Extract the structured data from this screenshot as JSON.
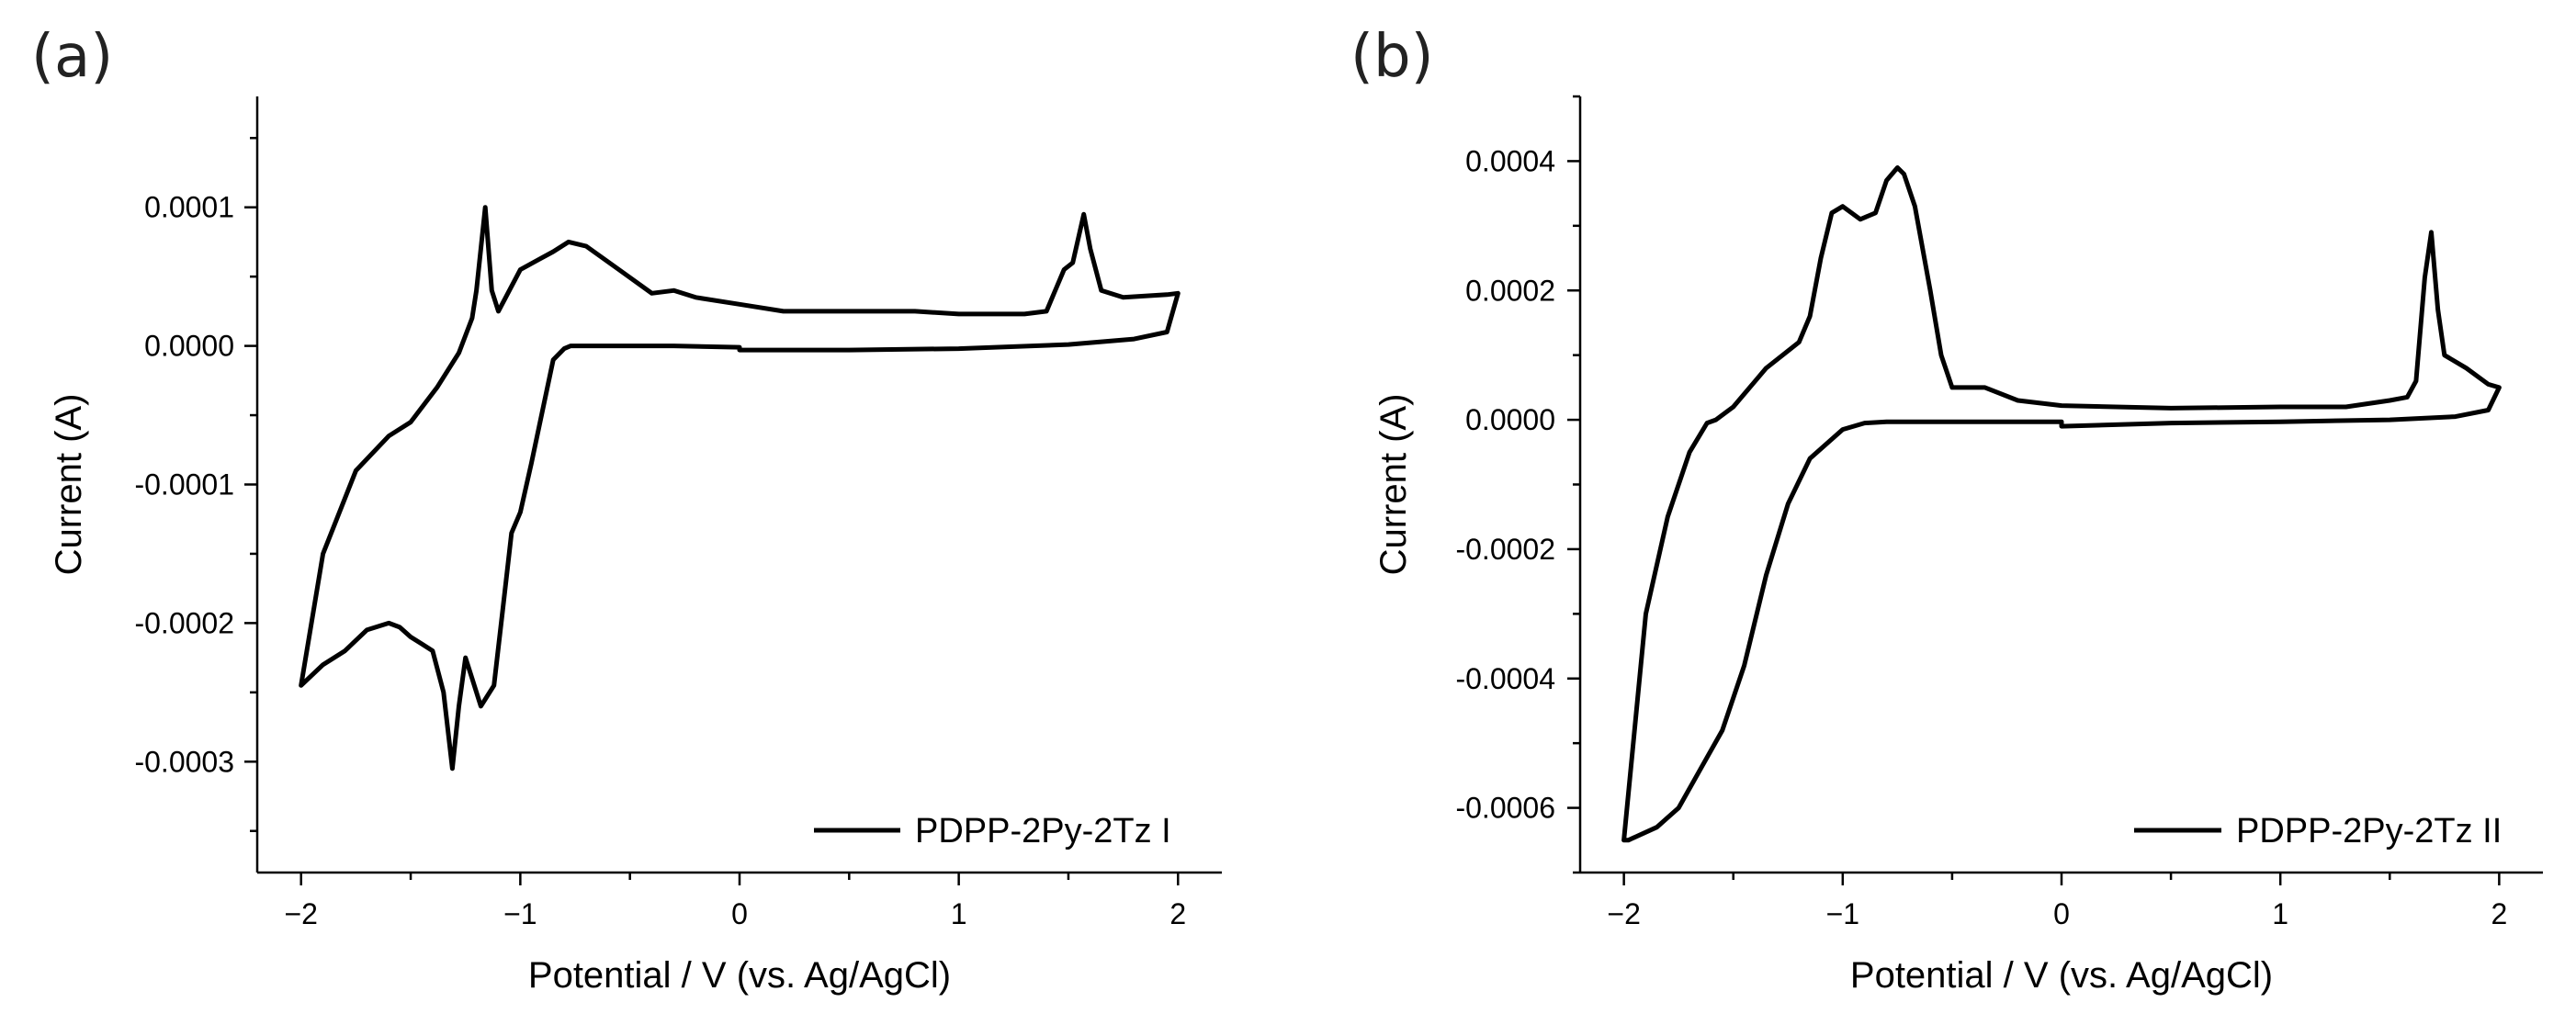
{
  "chart_data": [
    {
      "type": "line",
      "panel": "(a)",
      "xlabel": "Potential / V (vs. Ag/AgCl)",
      "ylabel": "Current (A)",
      "xlim": [
        -2.2,
        2.2
      ],
      "ylim": [
        -0.00038,
        0.00018
      ],
      "xticks": [
        -2,
        -1,
        0,
        1,
        2
      ],
      "xtick_labels": [
        "−2",
        "−1",
        "0",
        "1",
        "2"
      ],
      "yticks": [
        0.0001,
        0.0,
        -0.0001,
        -0.0002,
        -0.0003
      ],
      "ytick_labels": [
        "0.0001",
        "0.0000",
        "-0.0001",
        "-0.0002",
        "-0.0003"
      ],
      "legend": "PDPP-2Py-2Tz I",
      "legend_position": "bottom-right",
      "series": [
        {
          "name": "PDPP-2Py-2Tz I",
          "x": [
            0,
            0.5,
            1.0,
            1.5,
            1.8,
            1.95,
            2.0,
            1.95,
            1.75,
            1.65,
            1.6,
            1.57,
            1.52,
            1.48,
            1.44,
            1.4,
            1.3,
            1.0,
            0.8,
            0.5,
            0.2,
            0.0,
            -0.2,
            -0.3,
            -0.4,
            -0.55,
            -0.7,
            -0.78,
            -0.85,
            -0.92,
            -1.0,
            -1.05,
            -1.1,
            -1.13,
            -1.16,
            -1.18,
            -1.2,
            -1.22,
            -1.28,
            -1.38,
            -1.5,
            -1.6,
            -1.75,
            -1.9,
            -2.0,
            -1.9,
            -1.8,
            -1.7,
            -1.6,
            -1.55,
            -1.5,
            -1.45,
            -1.4,
            -1.35,
            -1.31,
            -1.28,
            -1.25,
            -1.22,
            -1.18,
            -1.12,
            -1.08,
            -1.04,
            -1.0,
            -0.95,
            -0.85,
            -0.8,
            -0.77,
            -0.75,
            -0.7,
            -0.5,
            -0.3,
            0.0
          ],
          "y": [
            -3e-06,
            -3e-06,
            -2e-06,
            1e-06,
            5e-06,
            1e-05,
            3.8e-05,
            3.7e-05,
            3.5e-05,
            4e-05,
            7e-05,
            9.5e-05,
            6e-05,
            5.5e-05,
            4e-05,
            2.5e-05,
            2.3e-05,
            2.3e-05,
            2.5e-05,
            2.5e-05,
            2.5e-05,
            3e-05,
            3.5e-05,
            4e-05,
            3.8e-05,
            5.5e-05,
            7.2e-05,
            7.5e-05,
            6.8e-05,
            6.2e-05,
            5.5e-05,
            4e-05,
            2.5e-05,
            4e-05,
            0.0001,
            7e-05,
            4e-05,
            2e-05,
            -5e-06,
            -3e-05,
            -5.5e-05,
            -6.5e-05,
            -9e-05,
            -0.00015,
            -0.000245,
            -0.00023,
            -0.00022,
            -0.000205,
            -0.0002,
            -0.000203,
            -0.00021,
            -0.000215,
            -0.00022,
            -0.00025,
            -0.000305,
            -0.00026,
            -0.000225,
            -0.00024,
            -0.00026,
            -0.000245,
            -0.00019,
            -0.000135,
            -0.00012,
            -8.5e-05,
            -1e-05,
            -2e-06,
            0.0,
            0.0,
            0.0,
            0.0,
            0.0,
            -1e-06
          ]
        }
      ]
    },
    {
      "type": "line",
      "panel": "(b)",
      "xlabel": "Potential / V (vs. Ag/AgCl)",
      "ylabel": "Current (A)",
      "xlim": [
        -2.2,
        2.2
      ],
      "ylim": [
        -0.0007,
        0.0005
      ],
      "xticks": [
        -2,
        -1,
        0,
        1,
        2
      ],
      "xtick_labels": [
        "−2",
        "−1",
        "0",
        "1",
        "2"
      ],
      "yticks": [
        0.0004,
        0.0002,
        0.0,
        -0.0002,
        -0.0004,
        -0.0006
      ],
      "ytick_labels": [
        "0.0004",
        "0.0002",
        "0.0000",
        "-0.0002",
        "-0.0004",
        "-0.0006"
      ],
      "legend": "PDPP-2Py-2Tz II",
      "legend_position": "bottom-right",
      "series": [
        {
          "name": "PDPP-2Py-2Tz II",
          "x": [
            0,
            0.5,
            1.0,
            1.5,
            1.8,
            1.95,
            2.0,
            1.95,
            1.85,
            1.75,
            1.72,
            1.69,
            1.66,
            1.62,
            1.58,
            1.5,
            1.3,
            1.0,
            0.5,
            0.0,
            -0.2,
            -0.35,
            -0.5,
            -0.55,
            -0.6,
            -0.67,
            -0.72,
            -0.75,
            -0.8,
            -0.85,
            -0.92,
            -1.0,
            -1.05,
            -1.1,
            -1.15,
            -1.2,
            -1.35,
            -1.5,
            -1.58,
            -1.62,
            -1.7,
            -1.8,
            -1.9,
            -2.0,
            -1.98,
            -1.85,
            -1.75,
            -1.65,
            -1.55,
            -1.45,
            -1.35,
            -1.25,
            -1.15,
            -1.0,
            -0.9,
            -0.8,
            -0.5,
            0.0
          ],
          "y": [
            -1e-05,
            -5e-06,
            -3e-06,
            0.0,
            5e-06,
            1.5e-05,
            5e-05,
            5.5e-05,
            8e-05,
            0.0001,
            0.00017,
            0.00029,
            0.00022,
            6e-05,
            3.5e-05,
            3e-05,
            2e-05,
            2e-05,
            1.8e-05,
            2.2e-05,
            3e-05,
            5e-05,
            5e-05,
            0.0001,
            0.0002,
            0.00033,
            0.00038,
            0.00039,
            0.00037,
            0.00032,
            0.00031,
            0.00033,
            0.00032,
            0.00025,
            0.00016,
            0.00012,
            8e-05,
            2e-05,
            0.0,
            -5e-06,
            -5e-05,
            -0.00015,
            -0.0003,
            -0.00065,
            -0.00065,
            -0.00063,
            -0.0006,
            -0.00054,
            -0.00048,
            -0.00038,
            -0.00024,
            -0.00013,
            -6e-05,
            -1.5e-05,
            -5e-06,
            -3e-06,
            -3e-06,
            -3e-06
          ]
        }
      ]
    }
  ]
}
